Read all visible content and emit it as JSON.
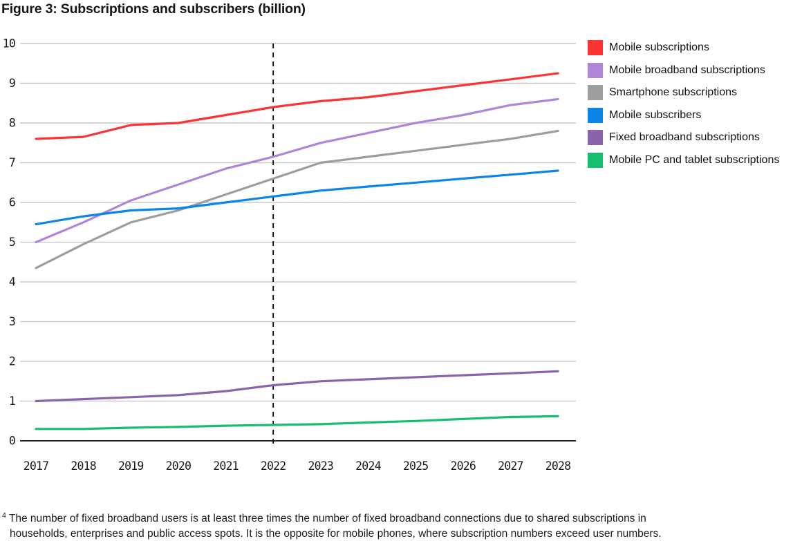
{
  "title": "Figure 3: Subscriptions and subscribers (billion)",
  "footnote": {
    "marker": "4",
    "line1": "The number of fixed broadband users is at least three times the number of fixed broadband connections due to shared subscriptions in",
    "line2": "households, enterprises and public access spots. It is the opposite for mobile phones, where subscription numbers exceed user numbers."
  },
  "colors": {
    "grid": "#c9c9c9",
    "axis": "#000000",
    "vline": "#000000",
    "text": "#1a1a1a"
  },
  "chart_data": {
    "type": "line",
    "title": "Figure 3: Subscriptions and subscribers (billion)",
    "xlabel": "",
    "ylabel": "",
    "x": [
      2017,
      2018,
      2019,
      2020,
      2021,
      2022,
      2023,
      2024,
      2025,
      2026,
      2027,
      2028
    ],
    "ylim": [
      0,
      10
    ],
    "ytick_step": 1,
    "grid": true,
    "legend_position": "right",
    "annotation": {
      "type": "vline",
      "x": 2022,
      "style": "dashed"
    },
    "series": [
      {
        "name": "Mobile subscriptions",
        "color": "#fb3333",
        "values": [
          7.6,
          7.65,
          7.95,
          8.0,
          8.2,
          8.4,
          8.55,
          8.65,
          8.8,
          8.95,
          9.1,
          9.25
        ]
      },
      {
        "name": "Mobile broadband subscriptions",
        "color": "#b084d8",
        "values": [
          5.0,
          5.5,
          6.05,
          6.45,
          6.85,
          7.15,
          7.5,
          7.75,
          8.0,
          8.2,
          8.45,
          8.6
        ]
      },
      {
        "name": "Smartphone subscriptions",
        "color": "#9d9d9d",
        "values": [
          4.35,
          4.95,
          5.5,
          5.8,
          6.2,
          6.6,
          7.0,
          7.15,
          7.3,
          7.45,
          7.6,
          7.8
        ]
      },
      {
        "name": "Mobile subscribers",
        "color": "#0b86e8",
        "values": [
          5.45,
          5.65,
          5.8,
          5.85,
          6.0,
          6.15,
          6.3,
          6.4,
          6.5,
          6.6,
          6.7,
          6.8
        ]
      },
      {
        "name": "Fixed broadband subscriptions",
        "color": "#8a64a8",
        "values": [
          1.0,
          1.05,
          1.1,
          1.15,
          1.25,
          1.4,
          1.5,
          1.55,
          1.6,
          1.65,
          1.7,
          1.75
        ]
      },
      {
        "name": "Mobile PC and tablet subscriptions",
        "color": "#16bf70",
        "values": [
          0.3,
          0.3,
          0.33,
          0.35,
          0.38,
          0.4,
          0.42,
          0.46,
          0.5,
          0.55,
          0.6,
          0.62
        ]
      }
    ]
  }
}
